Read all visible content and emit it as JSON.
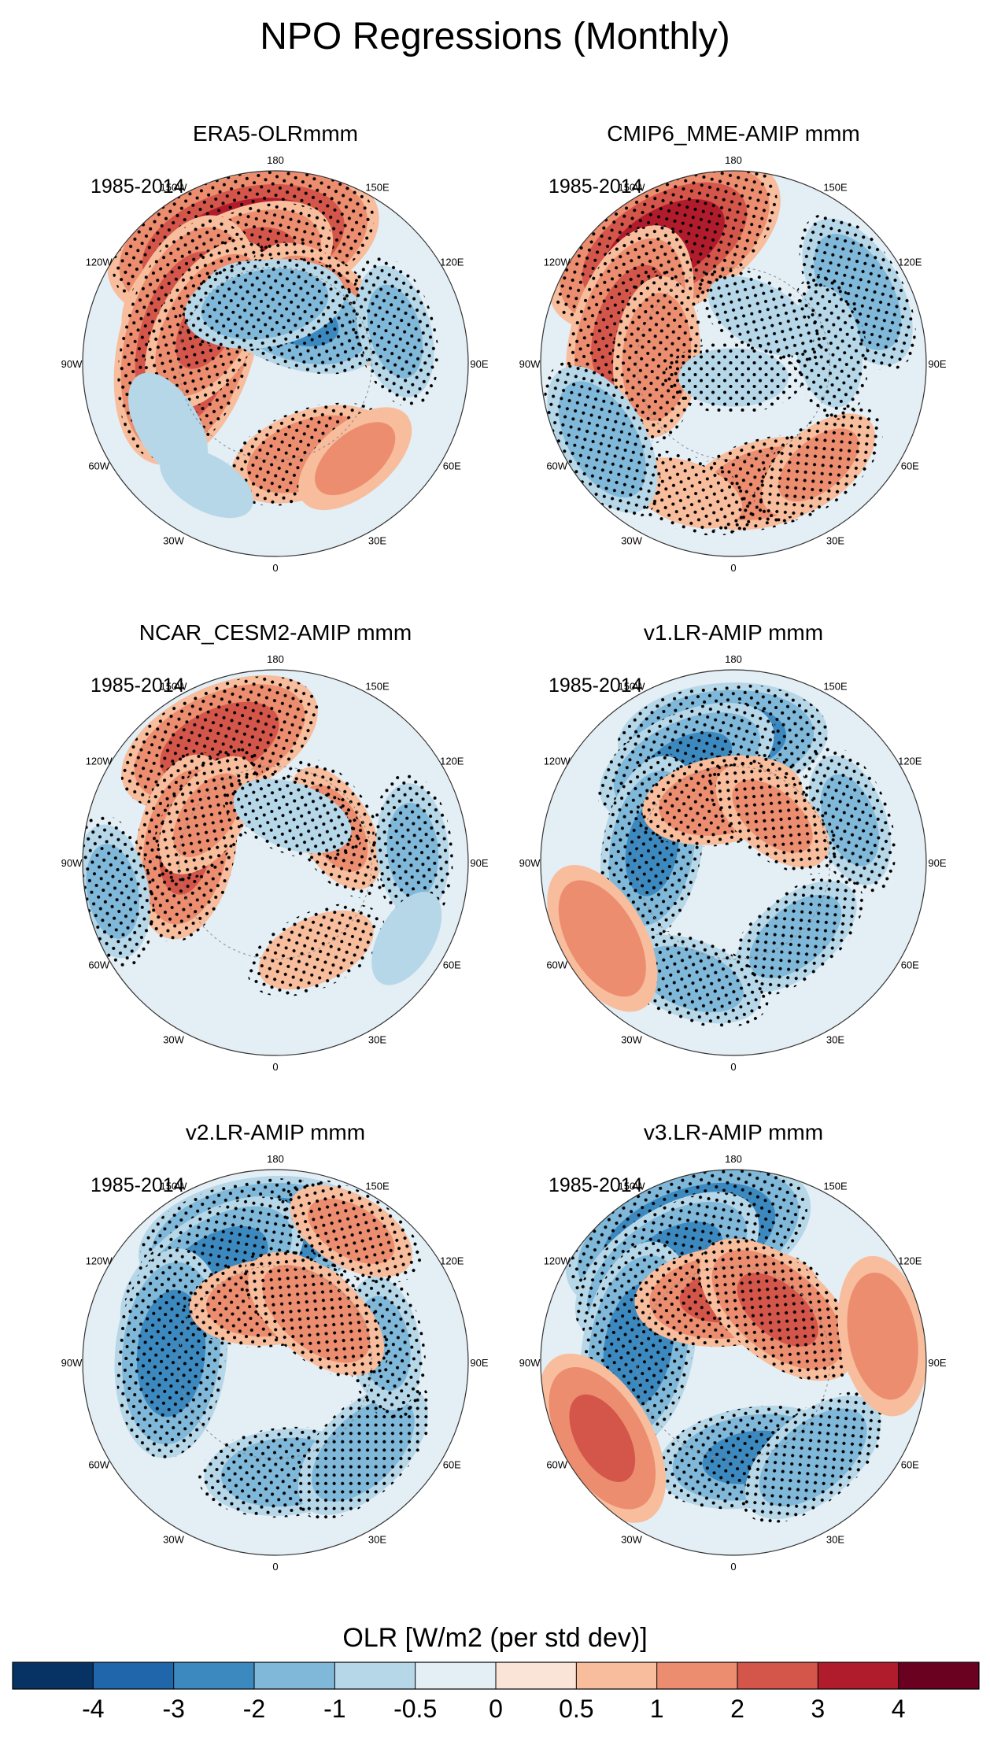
{
  "chart_data": {
    "type": "heatmap",
    "title": "NPO Regressions (Monthly)",
    "projection": "north polar stereographic",
    "period": "1985-2014",
    "longitude_labels": [
      "180",
      "150E",
      "120E",
      "90E",
      "60E",
      "30E",
      "0",
      "30W",
      "60W",
      "90W",
      "120W",
      "150W"
    ],
    "panels": [
      {
        "title": "ERA5-OLRmmm",
        "period": "1985-2014",
        "features": [
          {
            "lon": -165,
            "lat": 45,
            "value": 4,
            "stipple": true
          },
          {
            "lon": -150,
            "lat": 55,
            "value": 3,
            "stipple": true
          },
          {
            "lon": -105,
            "lat": 57,
            "value": 3.5,
            "stipple": true
          },
          {
            "lon": -120,
            "lat": 62,
            "value": 2,
            "stipple": true
          },
          {
            "lon": 140,
            "lat": 62,
            "value": 1.5,
            "stipple": true
          },
          {
            "lon": 20,
            "lat": 55,
            "value": 1.5,
            "stipple": true
          },
          {
            "lon": 40,
            "lat": 45,
            "value": 1,
            "stipple": false
          },
          {
            "lon": 160,
            "lat": 72,
            "value": -2,
            "stipple": true
          },
          {
            "lon": -170,
            "lat": 68,
            "value": -1.5,
            "stipple": true
          },
          {
            "lon": 105,
            "lat": 45,
            "value": -1,
            "stipple": true
          },
          {
            "lon": -60,
            "lat": 45,
            "value": -0.7,
            "stipple": false
          },
          {
            "lon": -30,
            "lat": 40,
            "value": -0.5,
            "stipple": false
          }
        ]
      },
      {
        "title": "CMIP6_MME-AMIP  mmm",
        "period": "1985-2014",
        "features": [
          {
            "lon": -150,
            "lat": 40,
            "value": 3.5,
            "stipple": true
          },
          {
            "lon": -110,
            "lat": 50,
            "value": 2.5,
            "stipple": true
          },
          {
            "lon": -95,
            "lat": 62,
            "value": 1.5,
            "stipple": true
          },
          {
            "lon": 15,
            "lat": 45,
            "value": 1.5,
            "stipple": true
          },
          {
            "lon": 40,
            "lat": 42,
            "value": 1,
            "stipple": true
          },
          {
            "lon": -20,
            "lat": 40,
            "value": 0.7,
            "stipple": true
          },
          {
            "lon": 120,
            "lat": 38,
            "value": -1.5,
            "stipple": true
          },
          {
            "lon": 100,
            "lat": 55,
            "value": -0.8,
            "stipple": true
          },
          {
            "lon": 150,
            "lat": 70,
            "value": -0.7,
            "stipple": true
          },
          {
            "lon": -60,
            "lat": 35,
            "value": -1.5,
            "stipple": true
          },
          {
            "lon": 0,
            "lat": 85,
            "value": -0.6,
            "stipple": true
          }
        ]
      },
      {
        "title": "NCAR_CESM2-AMIP  mmm",
        "period": "1985-2014",
        "features": [
          {
            "lon": -155,
            "lat": 42,
            "value": 2.5,
            "stipple": true
          },
          {
            "lon": -100,
            "lat": 57,
            "value": 2,
            "stipple": true
          },
          {
            "lon": -125,
            "lat": 60,
            "value": 1,
            "stipple": true
          },
          {
            "lon": 120,
            "lat": 65,
            "value": 1,
            "stipple": true
          },
          {
            "lon": 25,
            "lat": 55,
            "value": 0.8,
            "stipple": true
          },
          {
            "lon": 160,
            "lat": 72,
            "value": -0.8,
            "stipple": true
          },
          {
            "lon": 95,
            "lat": 40,
            "value": -1,
            "stipple": true
          },
          {
            "lon": -80,
            "lat": 30,
            "value": -1,
            "stipple": true
          },
          {
            "lon": 60,
            "lat": 35,
            "value": -0.5,
            "stipple": false
          }
        ]
      },
      {
        "title": "v1.LR-AMIP  mmm",
        "period": "1985-2014",
        "features": [
          {
            "lon": -175,
            "lat": 45,
            "value": -2.5,
            "stipple": true
          },
          {
            "lon": -155,
            "lat": 50,
            "value": -2,
            "stipple": true
          },
          {
            "lon": -100,
            "lat": 60,
            "value": -2,
            "stipple": true
          },
          {
            "lon": 40,
            "lat": 55,
            "value": -1.2,
            "stipple": true
          },
          {
            "lon": -20,
            "lat": 45,
            "value": -1.2,
            "stipple": true
          },
          {
            "lon": 110,
            "lat": 45,
            "value": -1,
            "stipple": true
          },
          {
            "lon": -170,
            "lat": 67,
            "value": 1.5,
            "stipple": true
          },
          {
            "lon": 140,
            "lat": 68,
            "value": 1,
            "stipple": true
          },
          {
            "lon": -60,
            "lat": 35,
            "value": 1.5,
            "stipple": false
          }
        ]
      },
      {
        "title": "v2.LR-AMIP  mmm",
        "period": "1985-2014",
        "features": [
          {
            "lon": -170,
            "lat": 45,
            "value": -3,
            "stipple": true
          },
          {
            "lon": -145,
            "lat": 50,
            "value": -2.5,
            "stipple": true
          },
          {
            "lon": -95,
            "lat": 52,
            "value": -2.5,
            "stipple": true
          },
          {
            "lon": 5,
            "lat": 50,
            "value": -1.5,
            "stipple": true
          },
          {
            "lon": 45,
            "lat": 45,
            "value": -1.5,
            "stipple": true
          },
          {
            "lon": 100,
            "lat": 50,
            "value": -1,
            "stipple": true
          },
          {
            "lon": -175,
            "lat": 68,
            "value": 1.5,
            "stipple": true
          },
          {
            "lon": 140,
            "lat": 67,
            "value": 1.5,
            "stipple": true
          },
          {
            "lon": 150,
            "lat": 35,
            "value": 1,
            "stipple": true
          }
        ]
      },
      {
        "title": "v3.LR-AMIP  mmm",
        "period": "1985-2014",
        "features": [
          {
            "lon": -160,
            "lat": 42,
            "value": -3.5,
            "stipple": true
          },
          {
            "lon": -145,
            "lat": 48,
            "value": -2.5,
            "stipple": true
          },
          {
            "lon": -100,
            "lat": 55,
            "value": -2.5,
            "stipple": true
          },
          {
            "lon": 10,
            "lat": 55,
            "value": -2,
            "stipple": true
          },
          {
            "lon": 40,
            "lat": 45,
            "value": -1.5,
            "stipple": true
          },
          {
            "lon": -175,
            "lat": 66,
            "value": 2,
            "stipple": true
          },
          {
            "lon": 140,
            "lat": 65,
            "value": 2,
            "stipple": true
          },
          {
            "lon": -60,
            "lat": 35,
            "value": 2,
            "stipple": false
          },
          {
            "lon": 100,
            "lat": 35,
            "value": 1.5,
            "stipple": false
          }
        ]
      }
    ],
    "colorbar": {
      "label": "OLR [W/m2 (per std dev)]",
      "ticks": [
        "-4",
        "-3",
        "-2",
        "-1",
        "-0.5",
        "0",
        "0.5",
        "1",
        "2",
        "3",
        "4"
      ],
      "levels": [
        -4,
        -3,
        -2,
        -1,
        -0.5,
        0,
        0.5,
        1,
        2,
        3,
        4
      ],
      "colors": [
        "#063264",
        "#1f66aa",
        "#3c89c0",
        "#7fb8d9",
        "#b6d7e8",
        "#e3eef5",
        "#fae4d8",
        "#f8bd9c",
        "#ec8d6f",
        "#d45549",
        "#b11c2c",
        "#6b0121"
      ]
    }
  }
}
